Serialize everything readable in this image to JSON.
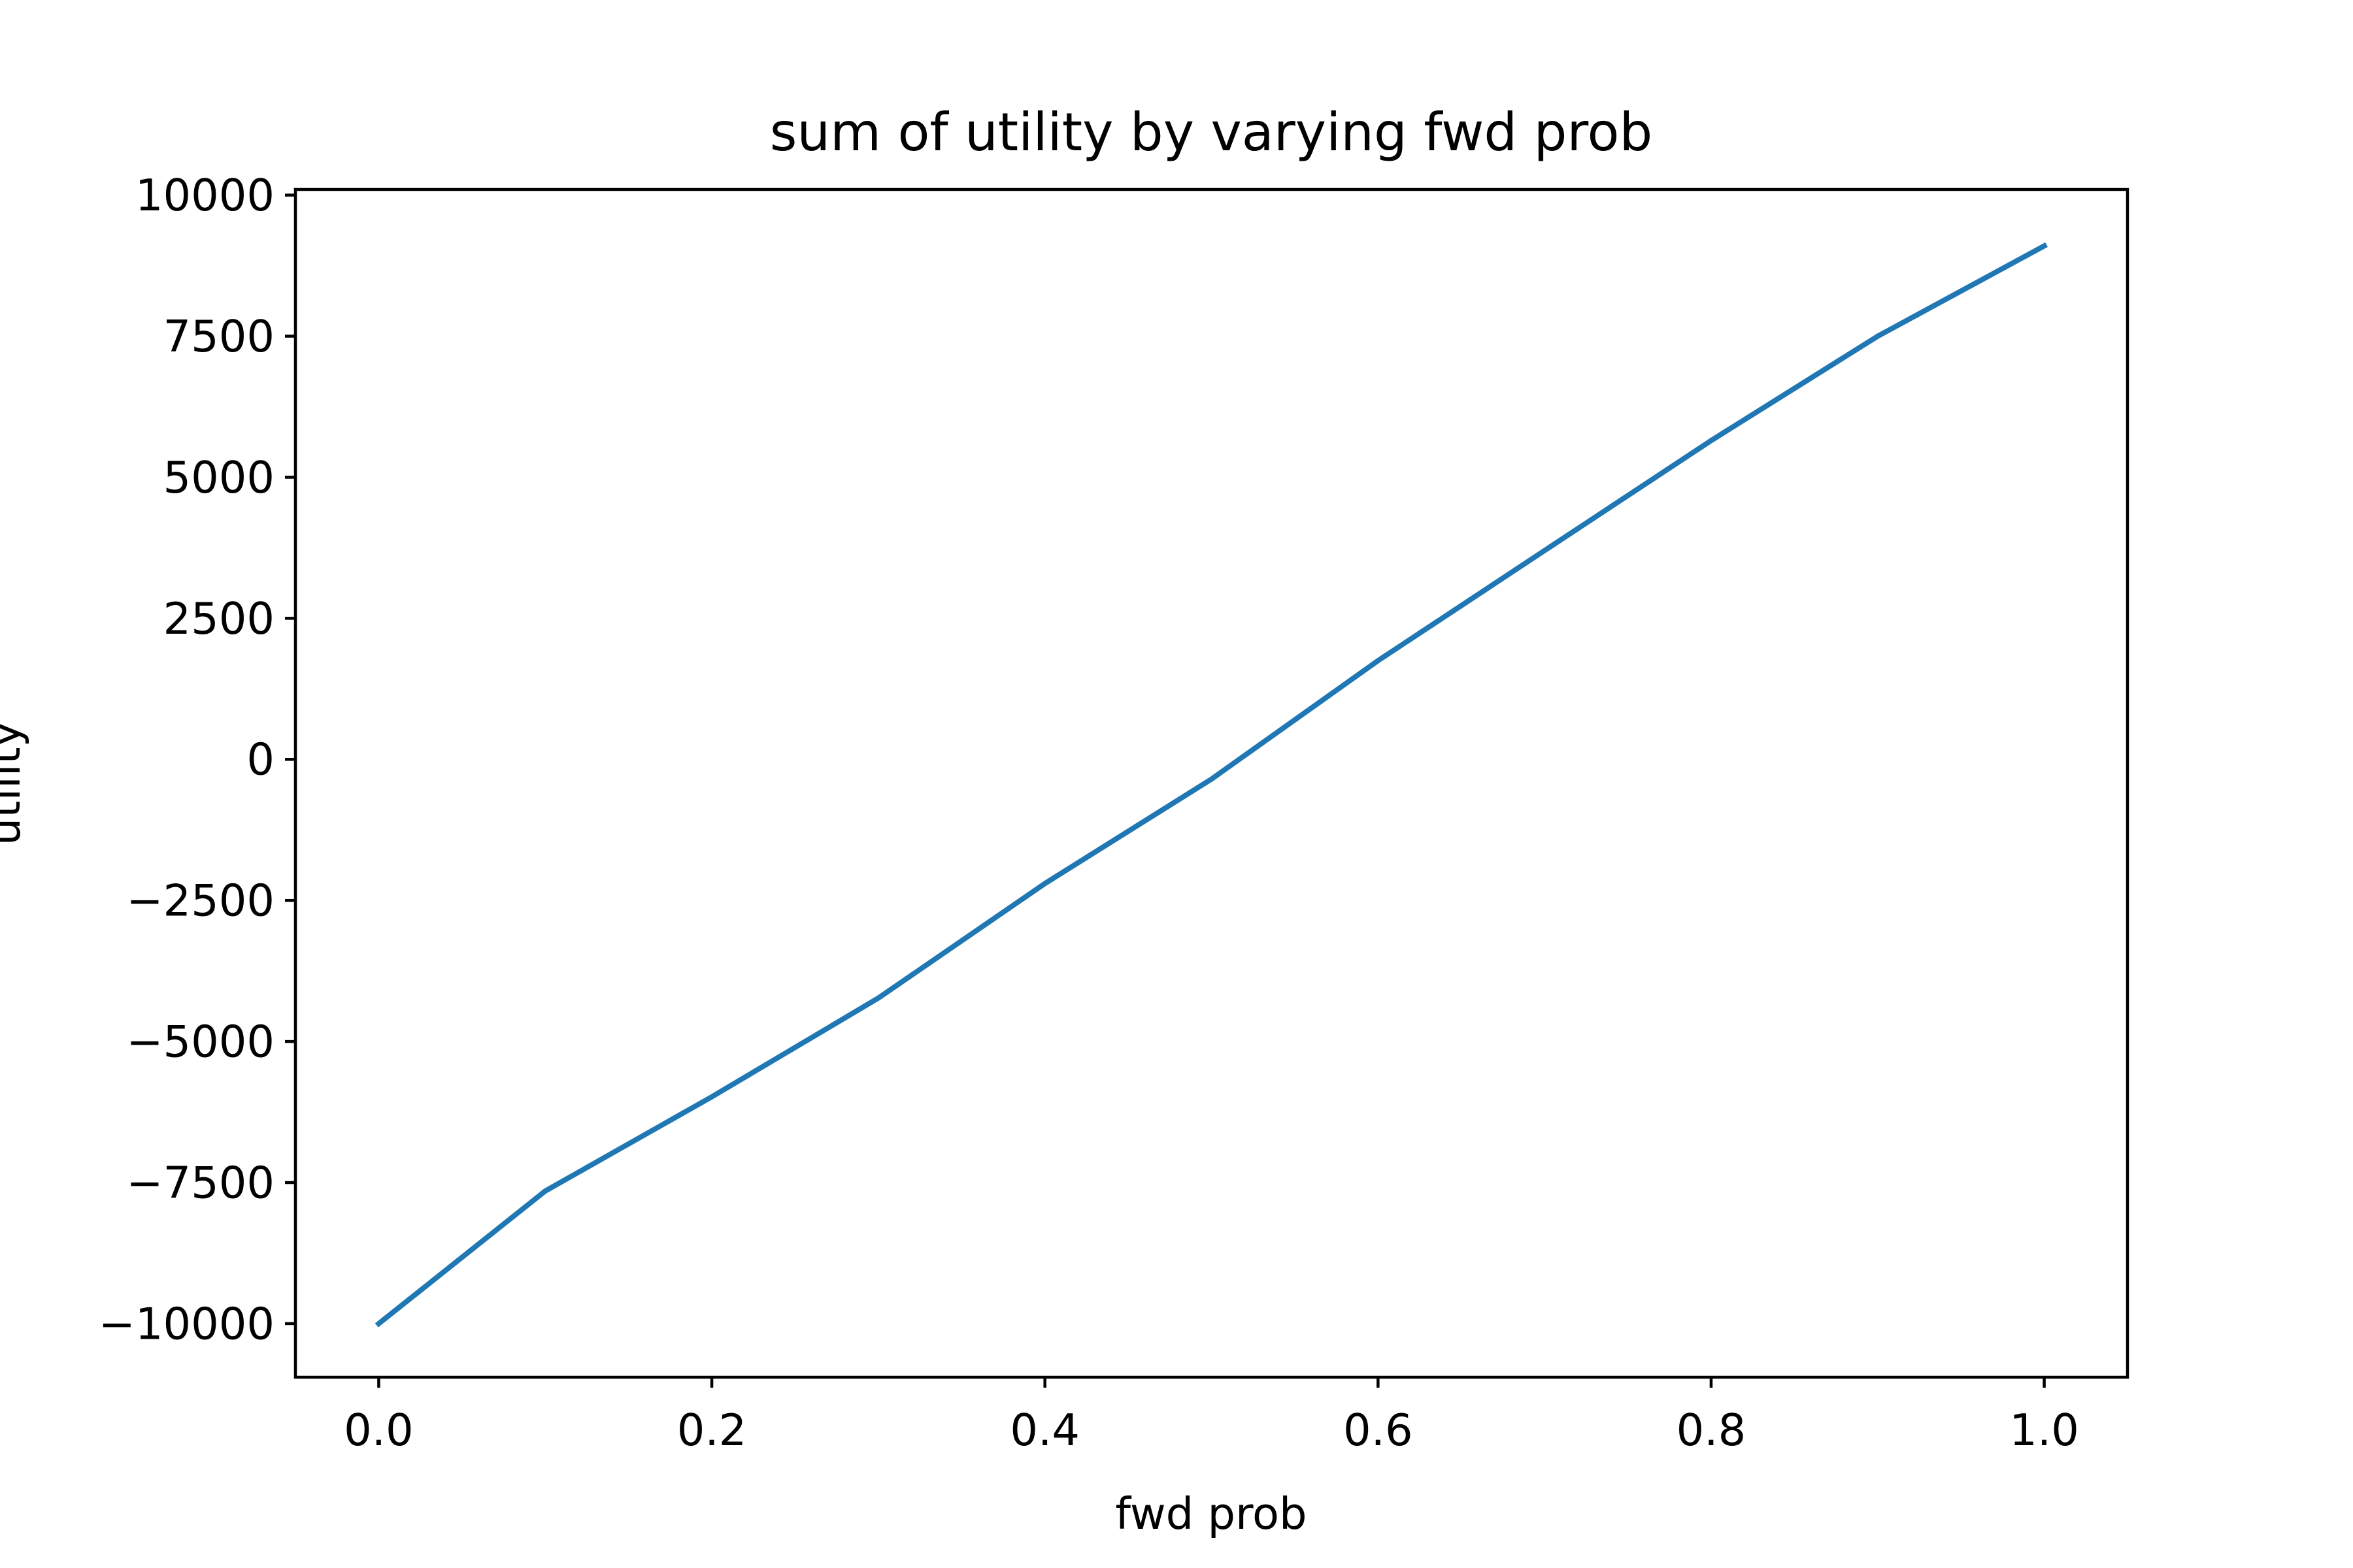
{
  "chart_data": {
    "type": "line",
    "title": "sum of utility by varying fwd prob",
    "xlabel": "fwd prob",
    "ylabel": "utility",
    "x": [
      0.0,
      0.1,
      0.2,
      0.3,
      0.4,
      0.5,
      0.6,
      0.7,
      0.8,
      0.9,
      1.0
    ],
    "series": [
      {
        "values": [
          -10000,
          -7650,
          -5980,
          -4230,
          -2200,
          -350,
          1750,
          3700,
          5650,
          7500,
          9100
        ]
      }
    ],
    "xlim": [
      -0.05,
      1.05
    ],
    "ylim": [
      -10950,
      10100
    ],
    "xticks": [
      0.0,
      0.2,
      0.4,
      0.6,
      0.8,
      1.0
    ],
    "xtick_labels": [
      "0.0",
      "0.2",
      "0.4",
      "0.6",
      "0.8",
      "1.0"
    ],
    "yticks": [
      10000,
      7500,
      5000,
      2500,
      0,
      -2500,
      -5000,
      -7500,
      -10000
    ],
    "ytick_labels": [
      "10000",
      "7500",
      "5000",
      "2500",
      "0",
      "−2500",
      "−5000",
      "−7500",
      "−10000"
    ],
    "grid": false,
    "line_color": "#1f77b4"
  }
}
